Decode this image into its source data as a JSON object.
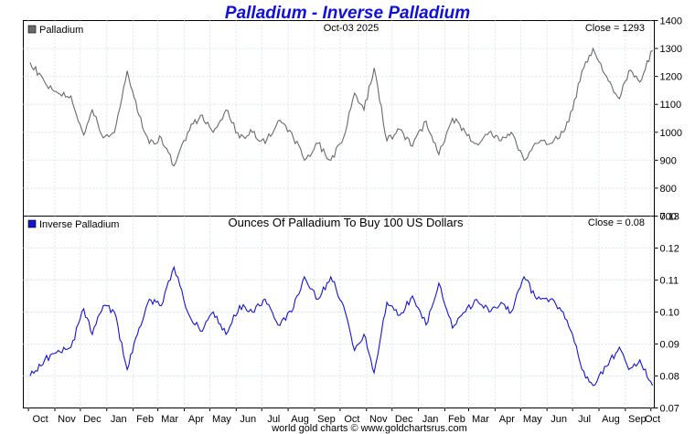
{
  "title": "Palladium - Inverse Palladium",
  "footer": "world gold charts © www.goldchartsrus.com",
  "colors": {
    "top_line": "#6a6a6a",
    "bottom_line": "#1414d2",
    "title": "#1010d8",
    "grid": "#d9e6ee"
  },
  "chart_data": [
    {
      "type": "line",
      "panel": "top",
      "legend": "Palladium",
      "date_label": "Oct-03  2025",
      "close_label": "Close = 1293",
      "ylim": [
        700,
        1400
      ],
      "yticks": [
        700,
        800,
        900,
        1000,
        1100,
        1200,
        1300,
        1400
      ],
      "grid": true,
      "x_dates": [
        "2023-10-03",
        "2023-10-20",
        "2023-11-05",
        "2023-11-20",
        "2023-12-05",
        "2023-12-15",
        "2023-12-28",
        "2024-01-10",
        "2024-01-25",
        "2024-02-08",
        "2024-02-20",
        "2024-03-05",
        "2024-03-20",
        "2024-04-05",
        "2024-04-20",
        "2024-05-05",
        "2024-05-20",
        "2024-06-05",
        "2024-06-20",
        "2024-07-05",
        "2024-07-20",
        "2024-08-05",
        "2024-08-20",
        "2024-09-05",
        "2024-09-20",
        "2024-10-05",
        "2024-10-18",
        "2024-10-29",
        "2024-11-10",
        "2024-11-25",
        "2024-12-10",
        "2024-12-25",
        "2025-01-10",
        "2025-01-25",
        "2025-02-10",
        "2025-02-25",
        "2025-03-10",
        "2025-03-25",
        "2025-04-08",
        "2025-04-20",
        "2025-05-05",
        "2025-05-20",
        "2025-06-05",
        "2025-06-20",
        "2025-07-01",
        "2025-07-12",
        "2025-07-25",
        "2025-08-10",
        "2025-08-25",
        "2025-09-05",
        "2025-09-18",
        "2025-10-03"
      ],
      "values": [
        1250,
        1180,
        1140,
        1130,
        990,
        1080,
        980,
        1000,
        1220,
        1060,
        960,
        980,
        880,
        1000,
        1060,
        1000,
        1080,
        980,
        1000,
        960,
        1040,
        1000,
        900,
        960,
        900,
        980,
        1140,
        1080,
        1230,
        970,
        1010,
        950,
        1040,
        920,
        1050,
        1000,
        960,
        1000,
        970,
        1000,
        900,
        960,
        960,
        1000,
        1080,
        1220,
        1300,
        1200,
        1120,
        1220,
        1180,
        1293
      ]
    },
    {
      "type": "line",
      "panel": "bottom",
      "legend": "Inverse Palladium",
      "subtitle": "Ounces Of Palladium To Buy 100 US Dollars",
      "close_label": "Close = 0.08",
      "ylim": [
        0.07,
        0.13
      ],
      "yticks": [
        "0.07",
        "0.08",
        "0.09",
        "0.10",
        "0.11",
        "0.12",
        "0.13"
      ],
      "grid": true,
      "x_dates": [
        "2023-10-03",
        "2023-10-20",
        "2023-11-05",
        "2023-11-20",
        "2023-12-05",
        "2023-12-15",
        "2023-12-28",
        "2024-01-10",
        "2024-01-25",
        "2024-02-08",
        "2024-02-20",
        "2024-03-05",
        "2024-03-20",
        "2024-04-05",
        "2024-04-20",
        "2024-05-05",
        "2024-05-20",
        "2024-06-05",
        "2024-06-20",
        "2024-07-05",
        "2024-07-20",
        "2024-08-05",
        "2024-08-20",
        "2024-09-05",
        "2024-09-20",
        "2024-10-05",
        "2024-10-18",
        "2024-10-29",
        "2024-11-10",
        "2024-11-25",
        "2024-12-10",
        "2024-12-25",
        "2025-01-10",
        "2025-01-25",
        "2025-02-10",
        "2025-02-25",
        "2025-03-10",
        "2025-03-25",
        "2025-04-08",
        "2025-04-20",
        "2025-05-05",
        "2025-05-20",
        "2025-06-05",
        "2025-06-20",
        "2025-07-01",
        "2025-07-12",
        "2025-07-25",
        "2025-08-10",
        "2025-08-25",
        "2025-09-05",
        "2025-09-18",
        "2025-10-03"
      ],
      "values": [
        0.08,
        0.085,
        0.088,
        0.089,
        0.101,
        0.093,
        0.102,
        0.1,
        0.082,
        0.095,
        0.104,
        0.102,
        0.114,
        0.1,
        0.094,
        0.1,
        0.093,
        0.102,
        0.1,
        0.104,
        0.096,
        0.1,
        0.111,
        0.104,
        0.111,
        0.102,
        0.088,
        0.093,
        0.081,
        0.103,
        0.099,
        0.105,
        0.096,
        0.109,
        0.095,
        0.1,
        0.104,
        0.1,
        0.103,
        0.1,
        0.111,
        0.104,
        0.104,
        0.1,
        0.093,
        0.082,
        0.077,
        0.083,
        0.089,
        0.082,
        0.085,
        0.077
      ]
    }
  ],
  "x_axis": {
    "months": [
      "Oct",
      "Nov",
      "Dec",
      "Jan",
      "Feb",
      "Mar",
      "Apr",
      "May",
      "Jun",
      "Jul",
      "Aug",
      "Sep",
      "Oct",
      "Nov",
      "Dec",
      "Jan",
      "Feb",
      "Mar",
      "Apr",
      "May",
      "Jun",
      "Jul",
      "Aug",
      "Sep",
      "Oct"
    ],
    "month_dates": [
      "2023-10-01",
      "2023-11-01",
      "2023-12-01",
      "2024-01-01",
      "2024-02-01",
      "2024-03-01",
      "2024-04-01",
      "2024-05-01",
      "2024-06-01",
      "2024-07-01",
      "2024-08-01",
      "2024-09-01",
      "2024-10-01",
      "2024-11-01",
      "2024-12-01",
      "2025-01-01",
      "2025-02-01",
      "2025-03-01",
      "2025-04-01",
      "2025-05-01",
      "2025-06-01",
      "2025-07-01",
      "2025-08-01",
      "2025-09-01",
      "2025-10-01"
    ],
    "start_date": "2023-09-25",
    "end_date": "2025-10-05"
  }
}
